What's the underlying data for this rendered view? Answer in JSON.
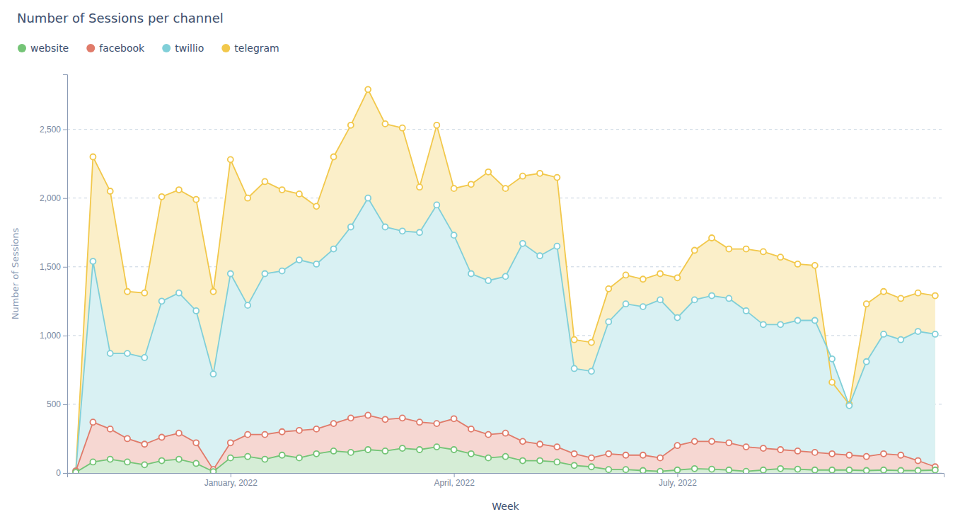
{
  "chart_data": {
    "type": "area",
    "title": "Number of Sessions per channel",
    "xlabel": "Week",
    "ylabel": "Number of Sessions",
    "categories": [
      null,
      null,
      null,
      null,
      null,
      null,
      null,
      null,
      null,
      "January, 2022",
      null,
      null,
      null,
      null,
      null,
      null,
      null,
      null,
      null,
      null,
      null,
      null,
      "April, 2022",
      null,
      null,
      null,
      null,
      null,
      null,
      null,
      null,
      null,
      null,
      null,
      null,
      "July, 2022",
      null,
      null,
      null,
      null,
      null,
      null,
      null,
      null,
      null,
      null,
      null,
      null,
      null,
      null,
      null
    ],
    "series": [
      {
        "name": "website",
        "color": "#74c476",
        "values": [
          5,
          80,
          100,
          80,
          60,
          90,
          100,
          70,
          10,
          110,
          120,
          100,
          130,
          110,
          140,
          160,
          150,
          170,
          160,
          180,
          170,
          190,
          170,
          140,
          110,
          120,
          90,
          90,
          80,
          55,
          45,
          25,
          25,
          18,
          12,
          22,
          32,
          28,
          22,
          12,
          22,
          32,
          28,
          22,
          22,
          22,
          18,
          22,
          18,
          18,
          22
        ]
      },
      {
        "name": "facebook",
        "color": "#e07b6a",
        "values": [
          15,
          370,
          320,
          250,
          210,
          260,
          290,
          220,
          25,
          220,
          280,
          280,
          300,
          310,
          320,
          360,
          400,
          420,
          390,
          400,
          370,
          360,
          395,
          320,
          280,
          290,
          230,
          210,
          190,
          140,
          110,
          140,
          130,
          130,
          110,
          200,
          230,
          230,
          220,
          190,
          180,
          170,
          160,
          150,
          140,
          130,
          120,
          140,
          130,
          90,
          45
        ]
      },
      {
        "name": "twillio",
        "color": "#80cfd8",
        "values": [
          15,
          1540,
          870,
          870,
          840,
          1250,
          1310,
          1180,
          720,
          1450,
          1220,
          1450,
          1470,
          1550,
          1520,
          1630,
          1790,
          2000,
          1790,
          1760,
          1750,
          1950,
          1730,
          1450,
          1400,
          1430,
          1670,
          1580,
          1650,
          760,
          740,
          1100,
          1230,
          1210,
          1260,
          1130,
          1260,
          1290,
          1270,
          1180,
          1080,
          1080,
          1110,
          1110,
          830,
          490,
          810,
          1010,
          970,
          1030,
          1010
        ]
      },
      {
        "name": "telegram",
        "color": "#f2c84b",
        "values": [
          10,
          2300,
          2050,
          1320,
          1310,
          2010,
          2060,
          1990,
          1320,
          2280,
          2000,
          2120,
          2060,
          2030,
          1940,
          2300,
          2530,
          2790,
          2540,
          2510,
          2080,
          2530,
          2070,
          2100,
          2190,
          2070,
          2160,
          2180,
          2150,
          970,
          950,
          1340,
          1440,
          1410,
          1450,
          1420,
          1620,
          1710,
          1630,
          1630,
          1610,
          1570,
          1520,
          1510,
          660,
          500,
          1230,
          1320,
          1270,
          1310,
          1290
        ]
      }
    ],
    "ylim": [
      0,
      2900
    ],
    "yticks": [
      0,
      500,
      {
        "value": 1000,
        "label": "1,000"
      },
      {
        "value": 1500,
        "label": "1,500"
      },
      {
        "value": 2000,
        "label": "2,000"
      },
      {
        "value": 2500,
        "label": "2,500"
      }
    ],
    "grid": true,
    "legend": "top-left",
    "marker": "circle"
  }
}
